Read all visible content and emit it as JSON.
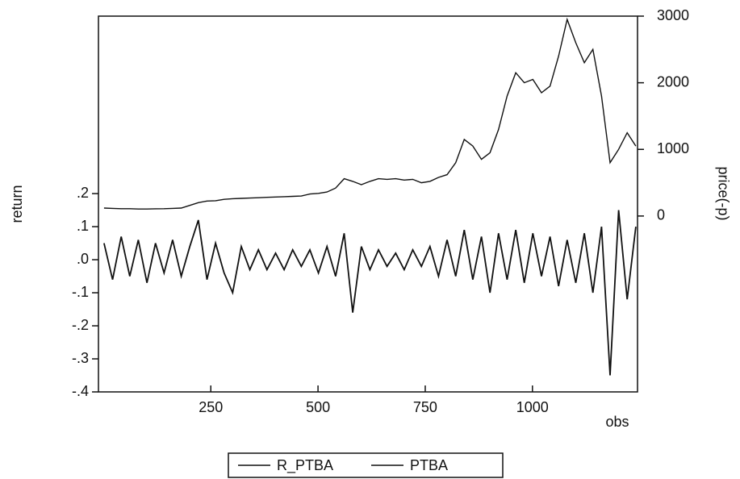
{
  "chart_data": {
    "type": "line",
    "x_label": "obs",
    "y_label": "return",
    "y2_label": "price(-p)",
    "x": [
      1,
      21,
      41,
      61,
      81,
      101,
      121,
      141,
      161,
      181,
      201,
      221,
      241,
      261,
      281,
      301,
      321,
      341,
      361,
      381,
      401,
      421,
      441,
      461,
      481,
      501,
      521,
      541,
      561,
      581,
      601,
      621,
      641,
      661,
      681,
      701,
      721,
      741,
      761,
      781,
      801,
      821,
      841,
      861,
      881,
      901,
      921,
      941,
      961,
      981,
      1001,
      1021,
      1041,
      1061,
      1081,
      1101,
      1121,
      1141,
      1161,
      1181,
      1201,
      1221,
      1241
    ],
    "series": [
      {
        "name": "R_PTBA",
        "color": "#111111",
        "axis": "y",
        "values": [
          0.05,
          -0.06,
          0.07,
          -0.05,
          0.06,
          -0.07,
          0.05,
          -0.04,
          0.06,
          -0.05,
          0.04,
          0.12,
          -0.06,
          0.05,
          -0.04,
          -0.1,
          0.04,
          -0.03,
          0.03,
          -0.03,
          0.02,
          -0.03,
          0.03,
          -0.02,
          0.03,
          -0.04,
          0.04,
          -0.05,
          0.08,
          -0.16,
          0.04,
          -0.03,
          0.03,
          -0.02,
          0.02,
          -0.03,
          0.03,
          -0.02,
          0.04,
          -0.05,
          0.06,
          -0.05,
          0.09,
          -0.06,
          0.07,
          -0.1,
          0.08,
          -0.06,
          0.09,
          -0.07,
          0.08,
          -0.05,
          0.07,
          -0.08,
          0.06,
          -0.07,
          0.08,
          -0.1,
          0.1,
          -0.35,
          0.15,
          -0.12,
          0.1
        ]
      },
      {
        "name": "PTBA",
        "color": "#111111",
        "axis": "y2",
        "values": [
          120,
          115,
          110,
          110,
          105,
          105,
          108,
          110,
          115,
          120,
          160,
          200,
          225,
          230,
          250,
          260,
          265,
          270,
          275,
          280,
          285,
          290,
          295,
          300,
          330,
          340,
          360,
          420,
          560,
          520,
          470,
          520,
          560,
          550,
          560,
          540,
          550,
          500,
          520,
          580,
          620,
          800,
          1150,
          1050,
          850,
          950,
          1300,
          1800,
          2150,
          2000,
          2050,
          1850,
          1950,
          2400,
          2950,
          2600,
          2300,
          2500,
          1800,
          800,
          1000,
          1250,
          1050
        ]
      }
    ],
    "xlim": [
      -12,
      1245
    ],
    "xticks": [
      250,
      500,
      750,
      1000
    ],
    "ylim": [
      -0.4,
      0.737
    ],
    "yticks": [
      {
        "value": -0.4,
        "label": "-.4"
      },
      {
        "value": -0.3,
        "label": "-.3"
      },
      {
        "value": -0.2,
        "label": "-.2"
      },
      {
        "value": -0.1,
        "label": "-.1"
      },
      {
        "value": 0,
        "label": ".0"
      },
      {
        "value": 0.1,
        "label": ".1"
      },
      {
        "value": 0.2,
        "label": ".2"
      }
    ],
    "y2lim": [
      -2640,
      3000
    ],
    "y2ticks": [
      0,
      1000,
      2000,
      3000
    ],
    "grid": false
  }
}
